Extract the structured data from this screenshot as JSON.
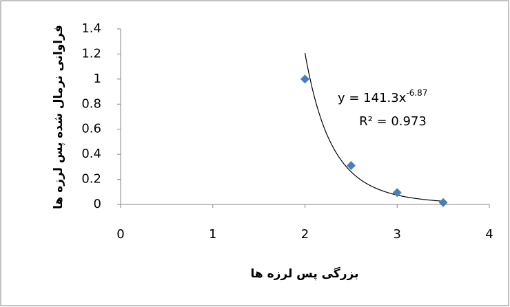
{
  "chart_data": {
    "type": "scatter",
    "x_label": "بزرگی پس لرزه ها",
    "y_label": "فراوانی نرمال شده پس لرزه ها",
    "series": [
      {
        "x": [
          2,
          2.5,
          3,
          3.5
        ],
        "values": [
          1.0,
          0.31,
          0.095,
          0.015
        ],
        "color": "#4a7ebb"
      }
    ],
    "trendline": {
      "type": "power",
      "coefficient": 141.3,
      "exponent": -6.87,
      "color": "#000000",
      "equation_label": "y = 141.3x",
      "exponent_label": "-6.87",
      "r_squared": 0.973,
      "r_squared_label": "R² = 0.973"
    },
    "xlim": [
      0,
      4
    ],
    "xticks": [
      0,
      1,
      2,
      3,
      4
    ],
    "ylim": [
      0,
      1.4
    ],
    "yticks": [
      0,
      0.2,
      0.4,
      0.6,
      0.8,
      1,
      1.2,
      1.4
    ],
    "grid": false
  }
}
